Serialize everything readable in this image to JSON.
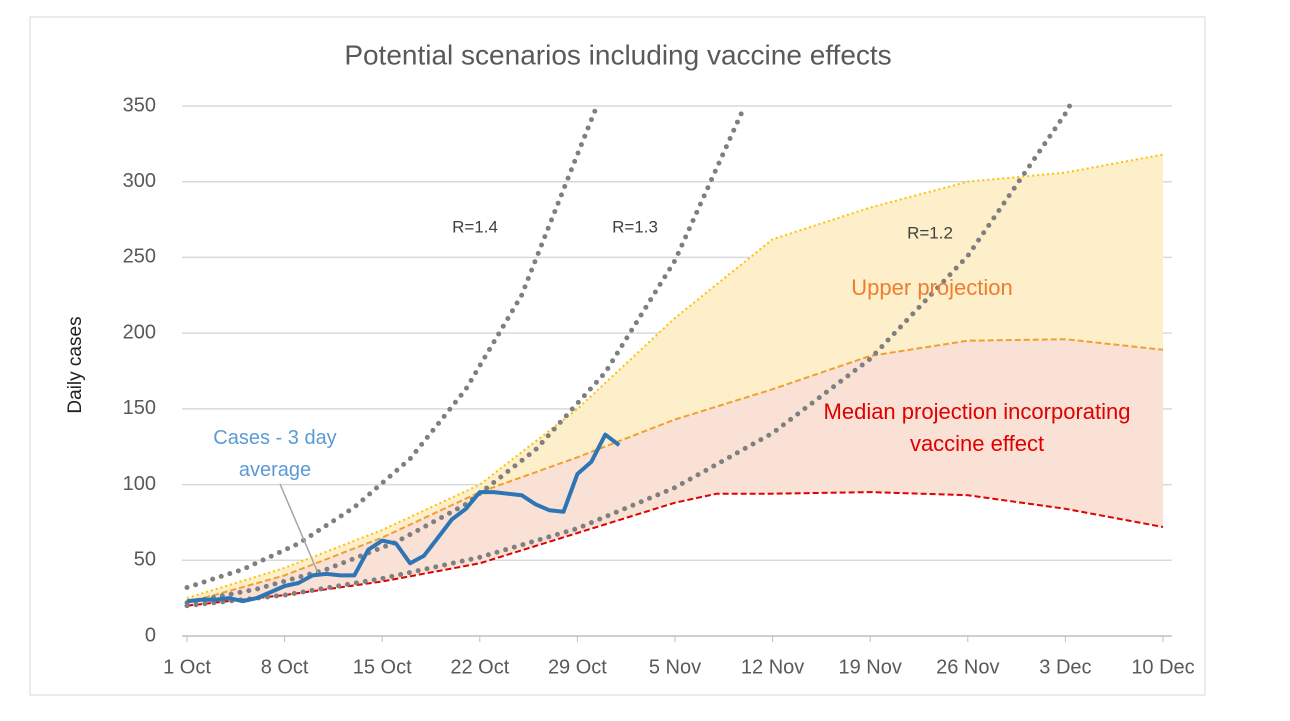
{
  "chart_data": {
    "type": "line",
    "title": "Potential scenarios including vaccine effects",
    "y_label": "Daily cases",
    "xlim": [
      0,
      70
    ],
    "xticks": [
      {
        "value": 0,
        "label": "1 Oct"
      },
      {
        "value": 7,
        "label": "8 Oct"
      },
      {
        "value": 14,
        "label": "15 Oct"
      },
      {
        "value": 21,
        "label": "22 Oct"
      },
      {
        "value": 28,
        "label": "29 Oct"
      },
      {
        "value": 35,
        "label": "5 Nov"
      },
      {
        "value": 42,
        "label": "12 Nov"
      },
      {
        "value": 49,
        "label": "19 Nov"
      },
      {
        "value": 56,
        "label": "26 Nov"
      },
      {
        "value": 63,
        "label": "3 Dec"
      },
      {
        "value": 70,
        "label": "10 Dec"
      }
    ],
    "ylim": [
      0,
      350
    ],
    "yticks": [
      0,
      50,
      100,
      150,
      200,
      250,
      300,
      350
    ],
    "grid": true,
    "series": [
      {
        "style": "dashed",
        "color": "#e00000",
        "x": [
          0,
          7,
          14,
          21,
          28,
          35,
          38,
          42,
          49,
          56,
          63,
          70
        ],
        "values": [
          20,
          27,
          36,
          48,
          68,
          88,
          94,
          94,
          95,
          93,
          84,
          72
        ]
      },
      {
        "name": "Median projection incorporating vaccine effect",
        "style": "dashed",
        "color": "#f0a030",
        "fill": "#f9e1d5",
        "label_color": "#e00000",
        "x": [
          0,
          7,
          14,
          21,
          28,
          35,
          42,
          49,
          56,
          63,
          70
        ],
        "values": [
          22,
          40,
          65,
          95,
          118,
          143,
          163,
          185,
          195,
          196,
          189
        ]
      },
      {
        "name": "Upper projection",
        "style": "dotted",
        "color": "#ffc000",
        "fill": "#fdefc9",
        "label_color": "#ed7d31",
        "x": [
          0,
          7,
          14,
          21,
          28,
          35,
          42,
          49,
          56,
          63,
          70
        ],
        "values": [
          25,
          45,
          70,
          100,
          150,
          210,
          262,
          283,
          300,
          306,
          318
        ]
      },
      {
        "name": "R=1.4",
        "style": "gray-dots",
        "color": "#7f7f7f",
        "x": [
          0,
          4,
          8,
          12,
          16,
          20,
          24,
          28,
          29.4
        ],
        "values": [
          32,
          44,
          61,
          85,
          117,
          163,
          225,
          318,
          350
        ]
      },
      {
        "name": "R=1.3",
        "style": "gray-dots",
        "color": "#7f7f7f",
        "x": [
          0,
          5,
          10,
          15,
          20,
          25,
          30,
          35,
          40
        ],
        "values": [
          22,
          31,
          44,
          62,
          87,
          123,
          174,
          248,
          350
        ]
      },
      {
        "name": "R=1.2",
        "style": "gray-dots",
        "color": "#7f7f7f",
        "x": [
          0,
          7,
          14,
          21,
          28,
          35,
          42,
          49,
          56,
          63,
          63.3
        ],
        "values": [
          20,
          27,
          38,
          52,
          71,
          98,
          134,
          183,
          251,
          345,
          350
        ]
      },
      {
        "name": "Cases - 3 day average",
        "style": "solid",
        "color": "#2e75b6",
        "label_color": "#5b9bd5",
        "x": [
          0,
          1,
          2,
          3,
          4,
          5,
          6,
          7,
          8,
          9,
          10,
          11,
          12,
          13,
          14,
          15,
          16,
          17,
          18,
          19,
          20,
          21,
          22,
          23,
          24,
          25,
          26,
          27,
          28,
          29,
          30,
          31
        ],
        "values": [
          23,
          24,
          24,
          25,
          23,
          25,
          29,
          33,
          35,
          40,
          41,
          40,
          40,
          57,
          63,
          61,
          48,
          53,
          65,
          77,
          84,
          95,
          95,
          94,
          93,
          87,
          83,
          82,
          107,
          115,
          133,
          126
        ]
      }
    ]
  }
}
